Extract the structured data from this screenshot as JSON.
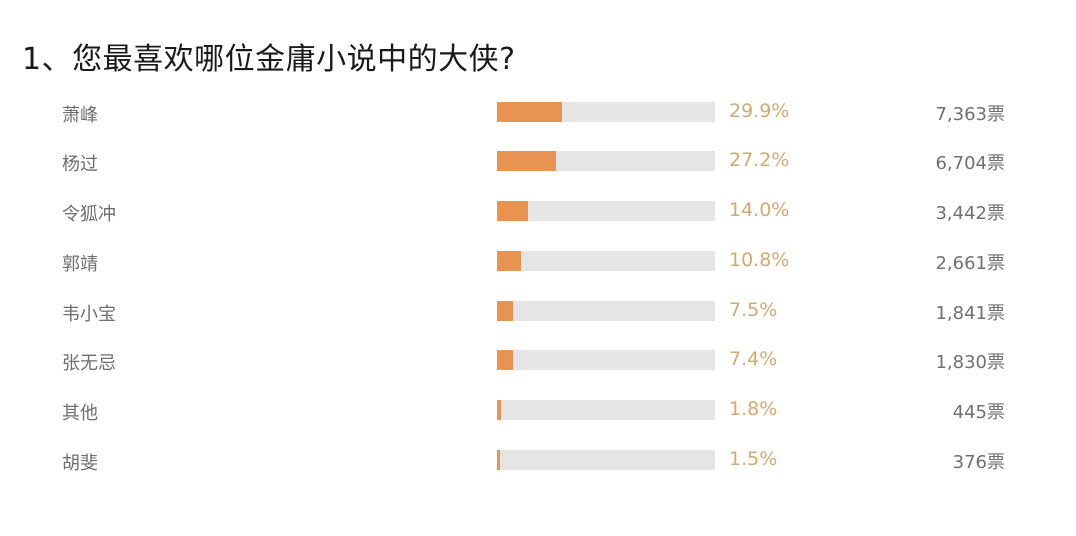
{
  "title": "1、您最喜欢哪位金庸小说中的大侠?",
  "colors": {
    "bar_fill": "#e89450",
    "bar_track": "#e5e5e5",
    "percent_text": "#d6a871"
  },
  "vote_suffix": "票",
  "options": [
    {
      "name": "萧峰",
      "percent": 29.9,
      "percent_label": "29.9%",
      "votes_label": "7,363票"
    },
    {
      "name": "杨过",
      "percent": 27.2,
      "percent_label": "27.2%",
      "votes_label": "6,704票"
    },
    {
      "name": "令狐冲",
      "percent": 14.0,
      "percent_label": "14.0%",
      "votes_label": "3,442票"
    },
    {
      "name": "郭靖",
      "percent": 10.8,
      "percent_label": "10.8%",
      "votes_label": "2,661票"
    },
    {
      "name": "韦小宝",
      "percent": 7.5,
      "percent_label": "7.5%",
      "votes_label": "1,841票"
    },
    {
      "name": "张无忌",
      "percent": 7.4,
      "percent_label": "7.4%",
      "votes_label": "1,830票"
    },
    {
      "name": "其他",
      "percent": 1.8,
      "percent_label": "1.8%",
      "votes_label": "445票"
    },
    {
      "name": "胡斐",
      "percent": 1.5,
      "percent_label": "1.5%",
      "votes_label": "376票"
    }
  ],
  "chart_data": {
    "type": "bar",
    "orientation": "horizontal",
    "title": "1、您最喜欢哪位金庸小说中的大侠?",
    "categories": [
      "萧峰",
      "杨过",
      "令狐冲",
      "郭靖",
      "韦小宝",
      "张无忌",
      "其他",
      "胡斐"
    ],
    "series": [
      {
        "name": "percent",
        "values": [
          29.9,
          27.2,
          14.0,
          10.8,
          7.5,
          7.4,
          1.8,
          1.5
        ]
      },
      {
        "name": "votes",
        "values": [
          7363,
          6704,
          3442,
          2661,
          1841,
          1830,
          445,
          376
        ]
      }
    ],
    "xlabel": "",
    "ylabel": "",
    "xlim": [
      0,
      100
    ],
    "grid": false,
    "legend": "none"
  }
}
